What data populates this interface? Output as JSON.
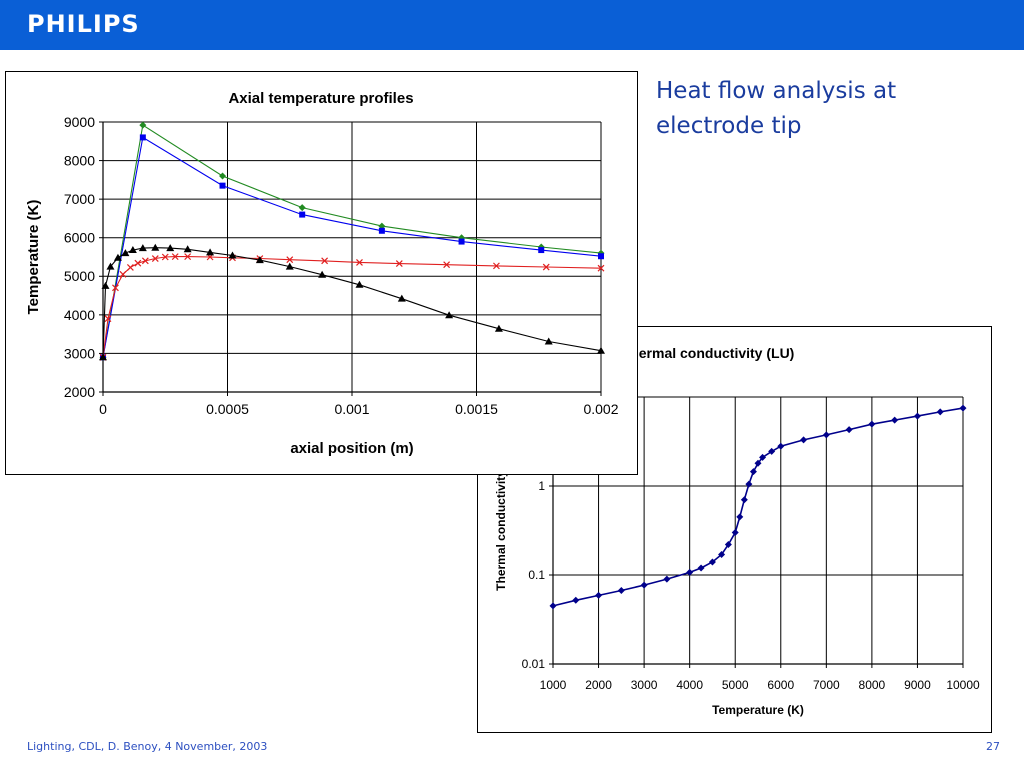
{
  "header": {
    "brand": "PHILIPS"
  },
  "slide": {
    "title": "Heat flow analysis at electrode tip"
  },
  "footer": {
    "left": "Lighting, CDL, D. Benoy, 4 November, 2003",
    "page": "27"
  },
  "colors": {
    "header_bar": "#0a5fd6",
    "title_text": "#1a3c9e"
  },
  "chart_data": [
    {
      "type": "line",
      "title": "Axial temperature profiles",
      "xlabel": "axial position (m)",
      "ylabel": "Temperature (K)",
      "xlim": [
        0,
        0.002
      ],
      "ylim": [
        2000,
        9000
      ],
      "xticks": [
        0,
        0.0005,
        0.001,
        0.0015,
        0.002
      ],
      "xtick_labels": [
        "0",
        "0.0005",
        "0.001",
        "0.0015",
        "0.002"
      ],
      "yticks": [
        2000,
        3000,
        4000,
        5000,
        6000,
        7000,
        8000,
        9000
      ],
      "ytick_labels": [
        "2000",
        "3000",
        "4000",
        "5000",
        "6000",
        "7000",
        "8000",
        "9000"
      ],
      "grid": true,
      "legend": "none",
      "series": [
        {
          "color": "#228b22",
          "marker": "diamond",
          "x": [
            0,
            0.00016,
            0.00048,
            0.0008,
            0.00112,
            0.00144,
            0.00176,
            0.002
          ],
          "y": [
            2900,
            8920,
            7600,
            6780,
            6300,
            6000,
            5760,
            5600
          ]
        },
        {
          "color": "#0000ee",
          "marker": "square",
          "x": [
            0,
            0.00016,
            0.00048,
            0.0008,
            0.00112,
            0.00144,
            0.00176,
            0.002
          ],
          "y": [
            2900,
            8600,
            7350,
            6600,
            6180,
            5900,
            5680,
            5520
          ]
        },
        {
          "color": "#e02020",
          "marker": "x",
          "x": [
            0,
            2e-05,
            5e-05,
            8e-05,
            0.00011,
            0.00014,
            0.00017,
            0.00021,
            0.00025,
            0.00029,
            0.00034,
            0.00043,
            0.00052,
            0.00063,
            0.00075,
            0.00089,
            0.00103,
            0.00119,
            0.00138,
            0.00158,
            0.00178,
            0.002
          ],
          "y": [
            2900,
            3900,
            4700,
            5050,
            5230,
            5340,
            5400,
            5460,
            5500,
            5510,
            5510,
            5500,
            5480,
            5460,
            5430,
            5400,
            5360,
            5330,
            5300,
            5270,
            5240,
            5210
          ]
        },
        {
          "color": "#000000",
          "marker": "triangle",
          "x": [
            0,
            1e-05,
            3e-05,
            6e-05,
            9e-05,
            0.00012,
            0.00016,
            0.00021,
            0.00027,
            0.00034,
            0.00043,
            0.00052,
            0.00063,
            0.00075,
            0.00088,
            0.00103,
            0.0012,
            0.00139,
            0.00159,
            0.00179,
            0.002
          ],
          "y": [
            2900,
            4750,
            5250,
            5480,
            5600,
            5680,
            5730,
            5740,
            5730,
            5700,
            5620,
            5540,
            5420,
            5250,
            5040,
            4780,
            4420,
            3990,
            3640,
            3310,
            3070
          ]
        }
      ]
    },
    {
      "type": "line",
      "title": "Thermal conductivity (LU)",
      "xlabel": "Temperature (K)",
      "ylabel": "Thermal conductivity",
      "xlim": [
        1000,
        10000
      ],
      "ylim": [
        0.01,
        10
      ],
      "yscale": "log",
      "xticks": [
        1000,
        2000,
        3000,
        4000,
        5000,
        6000,
        7000,
        8000,
        9000,
        10000
      ],
      "xtick_labels": [
        "1000",
        "2000",
        "3000",
        "4000",
        "5000",
        "6000",
        "7000",
        "8000",
        "9000",
        "10000"
      ],
      "yticks": [
        0.01,
        0.1,
        1
      ],
      "ytick_labels": [
        "0.01",
        "0.1",
        "1"
      ],
      "grid": true,
      "legend": "none",
      "series": [
        {
          "color": "#00008b",
          "marker": "diamond",
          "x": [
            1000,
            1500,
            2000,
            2500,
            3000,
            3500,
            4000,
            4250,
            4500,
            4700,
            4850,
            5000,
            5100,
            5200,
            5300,
            5400,
            5500,
            5600,
            5800,
            6000,
            6500,
            7000,
            7500,
            8000,
            8500,
            9000,
            9500,
            10000
          ],
          "y": [
            0.045,
            0.052,
            0.059,
            0.067,
            0.077,
            0.09,
            0.107,
            0.12,
            0.14,
            0.17,
            0.22,
            0.3,
            0.45,
            0.7,
            1.05,
            1.45,
            1.8,
            2.1,
            2.45,
            2.8,
            3.3,
            3.75,
            4.3,
            4.95,
            5.5,
            6.1,
            6.8,
            7.5
          ]
        }
      ]
    }
  ]
}
